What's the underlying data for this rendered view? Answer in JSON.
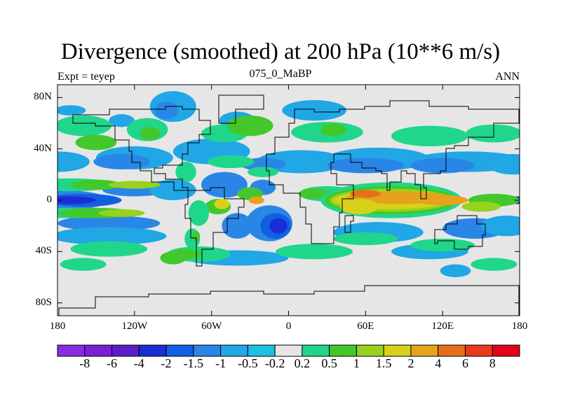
{
  "title": "Divergence (smoothed) at 200 hPa (10**6 m/s)",
  "subtitle_left": "Expt = teyep",
  "subtitle_center": "075_0_MaBP",
  "subtitle_right": "ANN",
  "chart_data": {
    "type": "heatmap",
    "title": "Divergence (smoothed) at 200 hPa (10**6 m/s)",
    "projection": "cylindrical-equidistant",
    "x_axis": {
      "range": [
        -180,
        180
      ],
      "ticks": [
        -180,
        -120,
        -60,
        0,
        60,
        120,
        180
      ],
      "tick_labels": [
        "180",
        "120W",
        "60W",
        "0",
        "60E",
        "120E",
        "180"
      ]
    },
    "y_axis": {
      "range": [
        -90,
        90
      ],
      "ticks": [
        80,
        40,
        0,
        -40,
        -80
      ],
      "tick_labels": [
        "80N",
        "40N",
        "0",
        "40S",
        "80S"
      ]
    },
    "colorbar": {
      "levels": [
        "-8",
        "-6",
        "-4",
        "-2",
        "-1.5",
        "-1",
        "-0.5",
        "-0.2",
        "0.2",
        "0.5",
        "1",
        "1.5",
        "2",
        "4",
        "6",
        "8"
      ],
      "colors": [
        "#8a2be2",
        "#7a1fd6",
        "#5a1ec8",
        "#1a2ed6",
        "#1160e0",
        "#2a86e6",
        "#21a6e6",
        "#1dc0e0",
        "#e6e6e6",
        "#20d68a",
        "#43c82c",
        "#96d21e",
        "#d6d21a",
        "#e6a21a",
        "#e6701a",
        "#e63c1a",
        "#e6001a"
      ]
    },
    "note": "Gridded field with land-sea outlines; values read from color bands. Strong equatorial bands: divergence over Africa/Indian Ocean/W Pacific (2 to 6), convergence over central Pacific and tropical Atlantic (-2 to -4); midlatitude bands of -0.5 to -1 and +0.5 to +1 alternate."
  }
}
